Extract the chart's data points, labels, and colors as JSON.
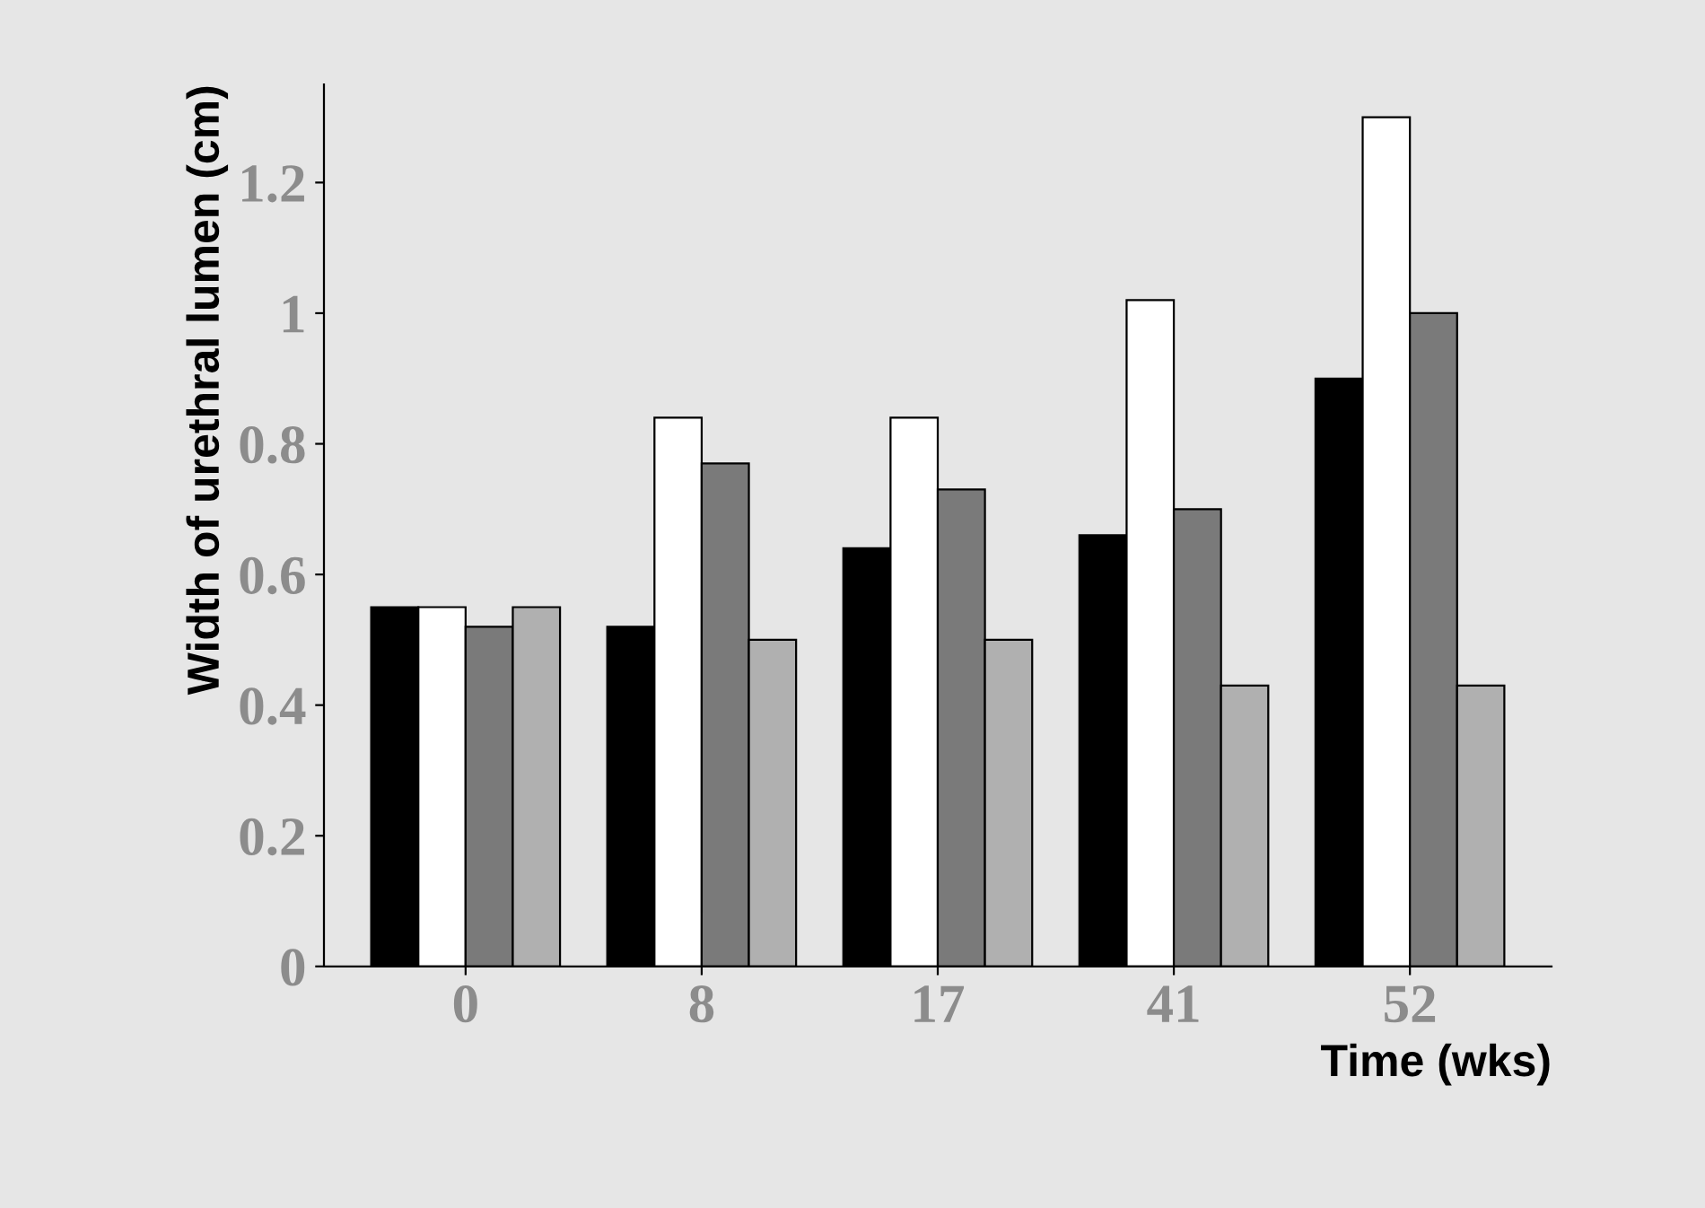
{
  "chart_data": {
    "type": "bar",
    "xlabel": "Time (wks)",
    "ylabel": "Width of urethral lumen (cm)",
    "categories": [
      "0",
      "8",
      "17",
      "41",
      "52"
    ],
    "series": [
      {
        "color": "#000000",
        "values": [
          0.55,
          0.52,
          0.64,
          0.66,
          0.9
        ]
      },
      {
        "color": "#ffffff",
        "values": [
          0.55,
          0.84,
          0.84,
          1.02,
          1.3
        ]
      },
      {
        "color": "#7a7a7a",
        "values": [
          0.52,
          0.77,
          0.73,
          0.7,
          1.0
        ]
      },
      {
        "color": "#b0b0b0",
        "values": [
          0.55,
          0.5,
          0.5,
          0.43,
          0.43
        ]
      }
    ],
    "ylim": [
      0,
      1.35
    ],
    "yticks": [
      0,
      0.2,
      0.4,
      0.6,
      0.8,
      1,
      1.2
    ],
    "grid": false,
    "legend": false
  }
}
